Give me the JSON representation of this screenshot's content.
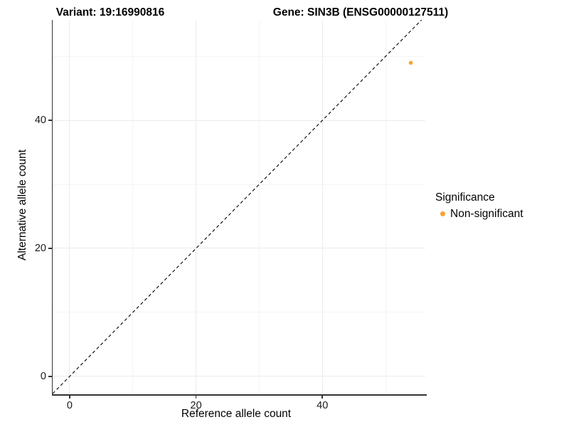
{
  "figure": {
    "title_left": "Variant: 19:16990816",
    "title_right": "Gene: SIN3B (ENSG00000127511)"
  },
  "legend": {
    "title": "Significance",
    "items": [
      {
        "label": "Non-significant",
        "color": "#F9A232"
      }
    ]
  },
  "chart_data": {
    "type": "scatter",
    "title_left": "Variant: 19:16990816",
    "title_right": "Gene: SIN3B (ENSG00000127511)",
    "xlabel": "Reference allele count",
    "ylabel": "Alternative allele count",
    "xlim": [
      -2.7,
      56.3
    ],
    "ylim": [
      -2.8,
      55.7
    ],
    "xticks": [
      0,
      20,
      40
    ],
    "yticks": [
      0,
      20,
      40
    ],
    "grid": {
      "major": true,
      "minor": true
    },
    "legend_title": "Significance",
    "legend_position": "right",
    "series": [
      {
        "name": "Non-significant",
        "color": "#F9A232",
        "points": [
          {
            "x": 54,
            "y": 49
          }
        ]
      }
    ],
    "reference_line": {
      "kind": "identity-diagonal",
      "style": "dashed",
      "color": "#000000"
    }
  }
}
